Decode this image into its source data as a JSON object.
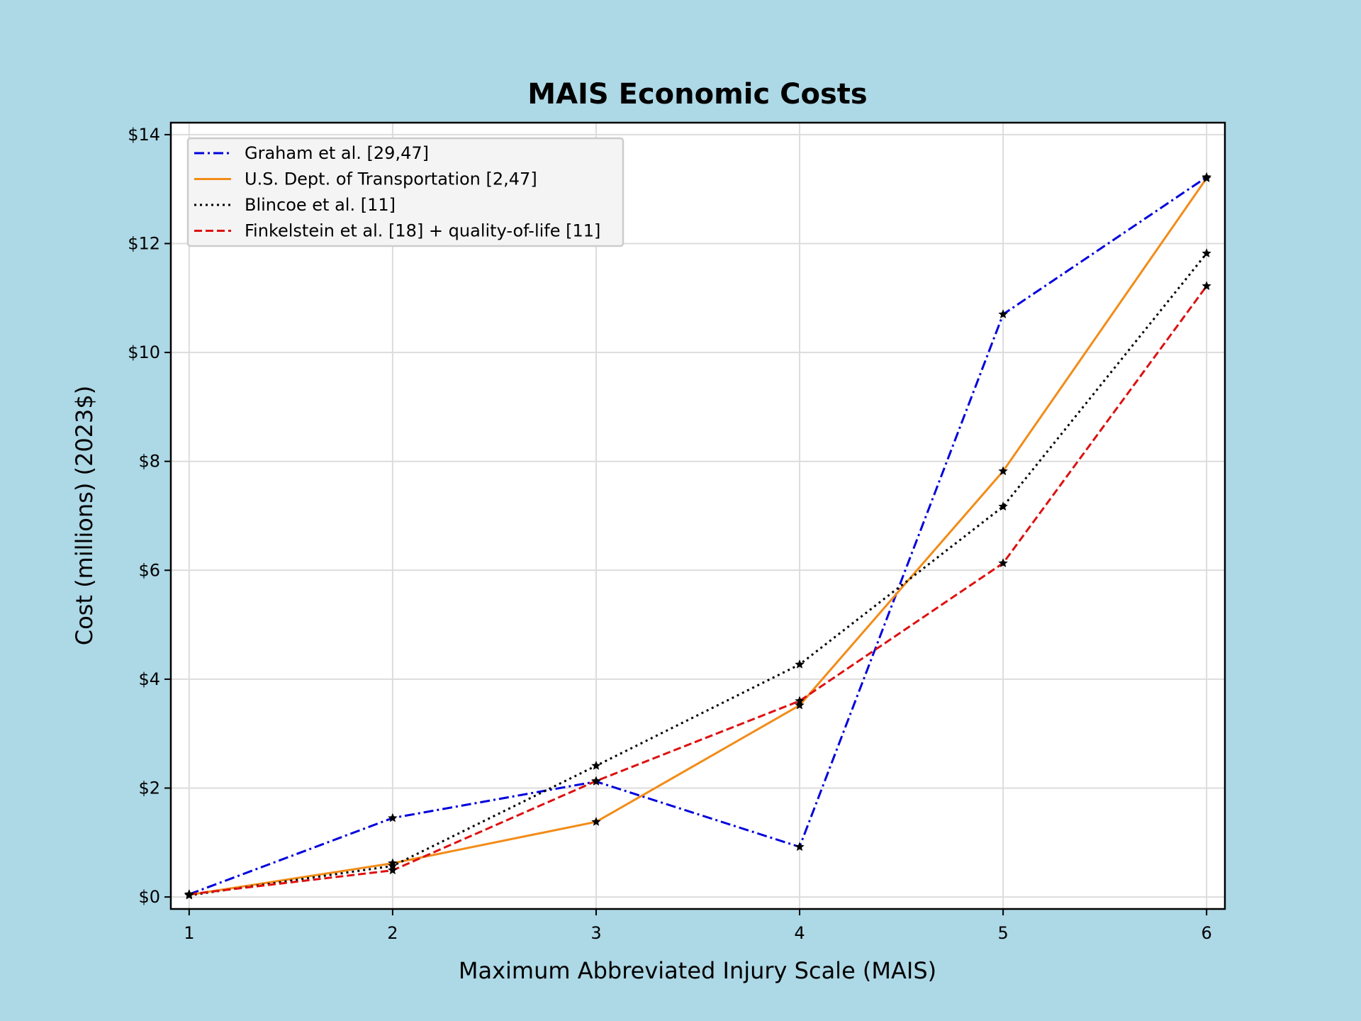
{
  "chart_data": {
    "type": "line",
    "title": "MAIS Economic Costs",
    "xlabel": "Maximum Abbreviated Injury Scale (MAIS)",
    "ylabel": "Cost (millions) (2023$)",
    "x": [
      1,
      2,
      3,
      4,
      5,
      6
    ],
    "xlim": [
      0.91,
      6.09
    ],
    "ylim": [
      -0.22,
      14.22
    ],
    "yticks": [
      0,
      2,
      4,
      6,
      8,
      10,
      12,
      14
    ],
    "ytick_labels": [
      "$0",
      "$2",
      "$4",
      "$6",
      "$8",
      "$10",
      "$12",
      "$14"
    ],
    "xtick_labels": [
      "1",
      "2",
      "3",
      "4",
      "5",
      "6"
    ],
    "grid": true,
    "legend_position": "top-left",
    "marker": "star",
    "marker_color": "#000000",
    "series": [
      {
        "name": "Graham et al. [29,47]",
        "values": [
          0.05,
          1.45,
          2.12,
          0.92,
          10.7,
          13.22
        ],
        "color": "#0000dd",
        "dash": "dashdot"
      },
      {
        "name": "U.S. Dept. of Transportation [2,47]",
        "values": [
          0.04,
          0.62,
          1.38,
          3.52,
          7.82,
          13.2
        ],
        "color": "#f28c18",
        "dash": "solid"
      },
      {
        "name": "Blincoe et al. [11]",
        "values": [
          0.03,
          0.57,
          2.41,
          4.27,
          7.17,
          11.82
        ],
        "color": "#000000",
        "dash": "dotted"
      },
      {
        "name": "Finkelstein et al. [18] + quality-of-life [11]",
        "values": [
          0.05,
          0.49,
          2.13,
          3.6,
          6.13,
          11.22
        ],
        "color": "#dd1111",
        "dash": "dashed"
      }
    ]
  }
}
